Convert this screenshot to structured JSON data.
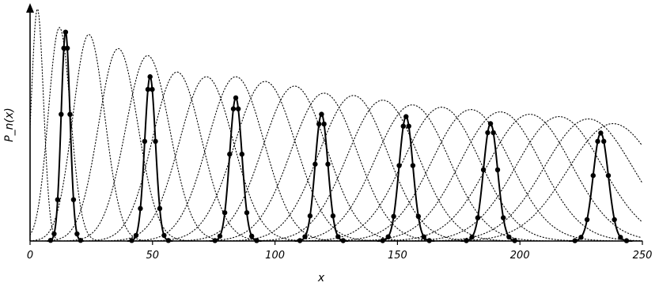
{
  "chart_data": {
    "type": "line",
    "title": "",
    "xlabel": "x",
    "ylabel": "P_n(x)",
    "xlim": [
      0,
      250
    ],
    "ylim": [
      0,
      1
    ],
    "x_ticks": [
      "0",
      "50",
      "100",
      "150",
      "200",
      "250"
    ],
    "y_ticks": [],
    "grid": false,
    "legend": "none",
    "background_series": {
      "style": "dotted",
      "peaks": [
        {
          "center": 3,
          "height": 0.99,
          "width": 2.5
        },
        {
          "center": 12,
          "height": 0.91,
          "width": 4.5
        },
        {
          "center": 24,
          "height": 0.88,
          "width": 6.5
        },
        {
          "center": 36,
          "height": 0.82,
          "width": 8.0
        },
        {
          "center": 48,
          "height": 0.79,
          "width": 9.0
        },
        {
          "center": 60,
          "height": 0.72,
          "width": 10.0
        },
        {
          "center": 72,
          "height": 0.7,
          "width": 11.0
        },
        {
          "center": 84,
          "height": 0.7,
          "width": 11.5
        },
        {
          "center": 96,
          "height": 0.68,
          "width": 12.5
        },
        {
          "center": 108,
          "height": 0.66,
          "width": 13.0
        },
        {
          "center": 120,
          "height": 0.63,
          "width": 13.5
        },
        {
          "center": 132,
          "height": 0.62,
          "width": 14.0
        },
        {
          "center": 144,
          "height": 0.6,
          "width": 14.5
        },
        {
          "center": 156,
          "height": 0.58,
          "width": 15.0
        },
        {
          "center": 168,
          "height": 0.57,
          "width": 15.5
        },
        {
          "center": 180,
          "height": 0.56,
          "width": 16.0
        },
        {
          "center": 192,
          "height": 0.55,
          "width": 16.5
        },
        {
          "center": 204,
          "height": 0.54,
          "width": 17.0
        },
        {
          "center": 216,
          "height": 0.53,
          "width": 17.5
        },
        {
          "center": 228,
          "height": 0.52,
          "width": 18.0
        },
        {
          "center": 238,
          "height": 0.5,
          "width": 18.5
        }
      ]
    },
    "highlighted_series": {
      "style": "solid-with-points",
      "peaks": [
        {
          "center": 14.5,
          "height": 0.89,
          "width": 1.8
        },
        {
          "center": 49,
          "height": 0.7,
          "width": 2.2
        },
        {
          "center": 84,
          "height": 0.61,
          "width": 2.5
        },
        {
          "center": 119,
          "height": 0.54,
          "width": 2.6
        },
        {
          "center": 153.5,
          "height": 0.53,
          "width": 2.8
        },
        {
          "center": 188,
          "height": 0.5,
          "width": 2.9
        },
        {
          "center": 233,
          "height": 0.46,
          "width": 3.1
        }
      ]
    }
  }
}
